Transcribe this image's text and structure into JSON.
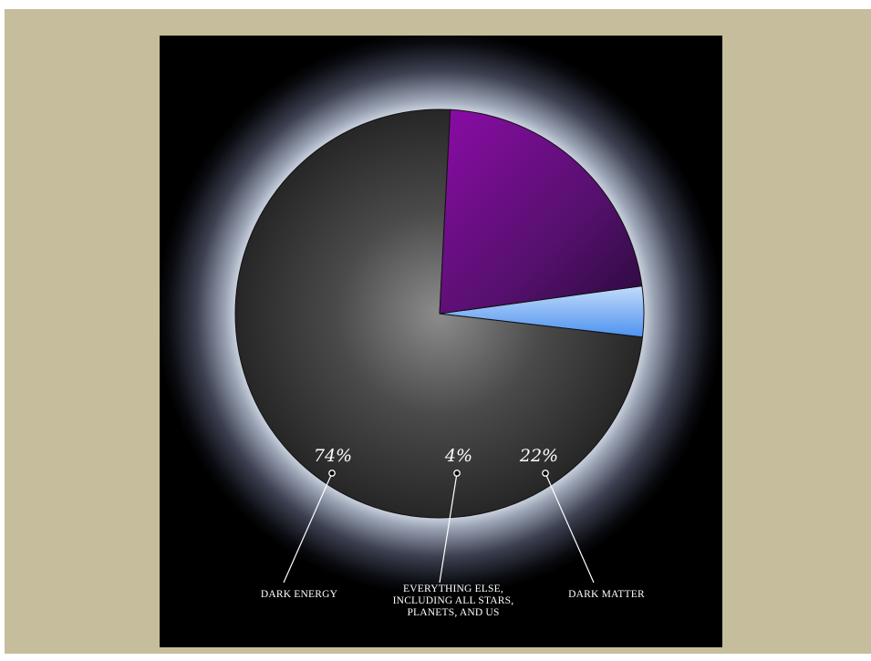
{
  "colors": {
    "frame": "#c6bd9c",
    "panel": "#000000",
    "dark_energy": "#3a3a3a",
    "dark_matter": "#5a0f78",
    "everything_else": "#6aaaf6",
    "label_text": "#ffffff"
  },
  "chart_data": {
    "type": "pie",
    "title": "",
    "slices": [
      {
        "label": "DARK ENERGY",
        "value": 74,
        "value_label": "74%",
        "color": "#3a3a3a"
      },
      {
        "label": "EVERYTHING ELSE, INCLUDING ALL STARS, PLANETS, AND US",
        "value": 4,
        "value_label": "4%",
        "color": "#6aaaf6"
      },
      {
        "label": "DARK MATTER",
        "value": 22,
        "value_label": "22%",
        "color": "#5a0f78"
      }
    ],
    "label_lines": {
      "dark_energy": [
        "DARK ENERGY"
      ],
      "everything_else": [
        "EVERYTHING ELSE,",
        "INCLUDING ALL STARS,",
        "PLANETS, AND US"
      ],
      "dark_matter": [
        "DARK MATTER"
      ]
    }
  }
}
